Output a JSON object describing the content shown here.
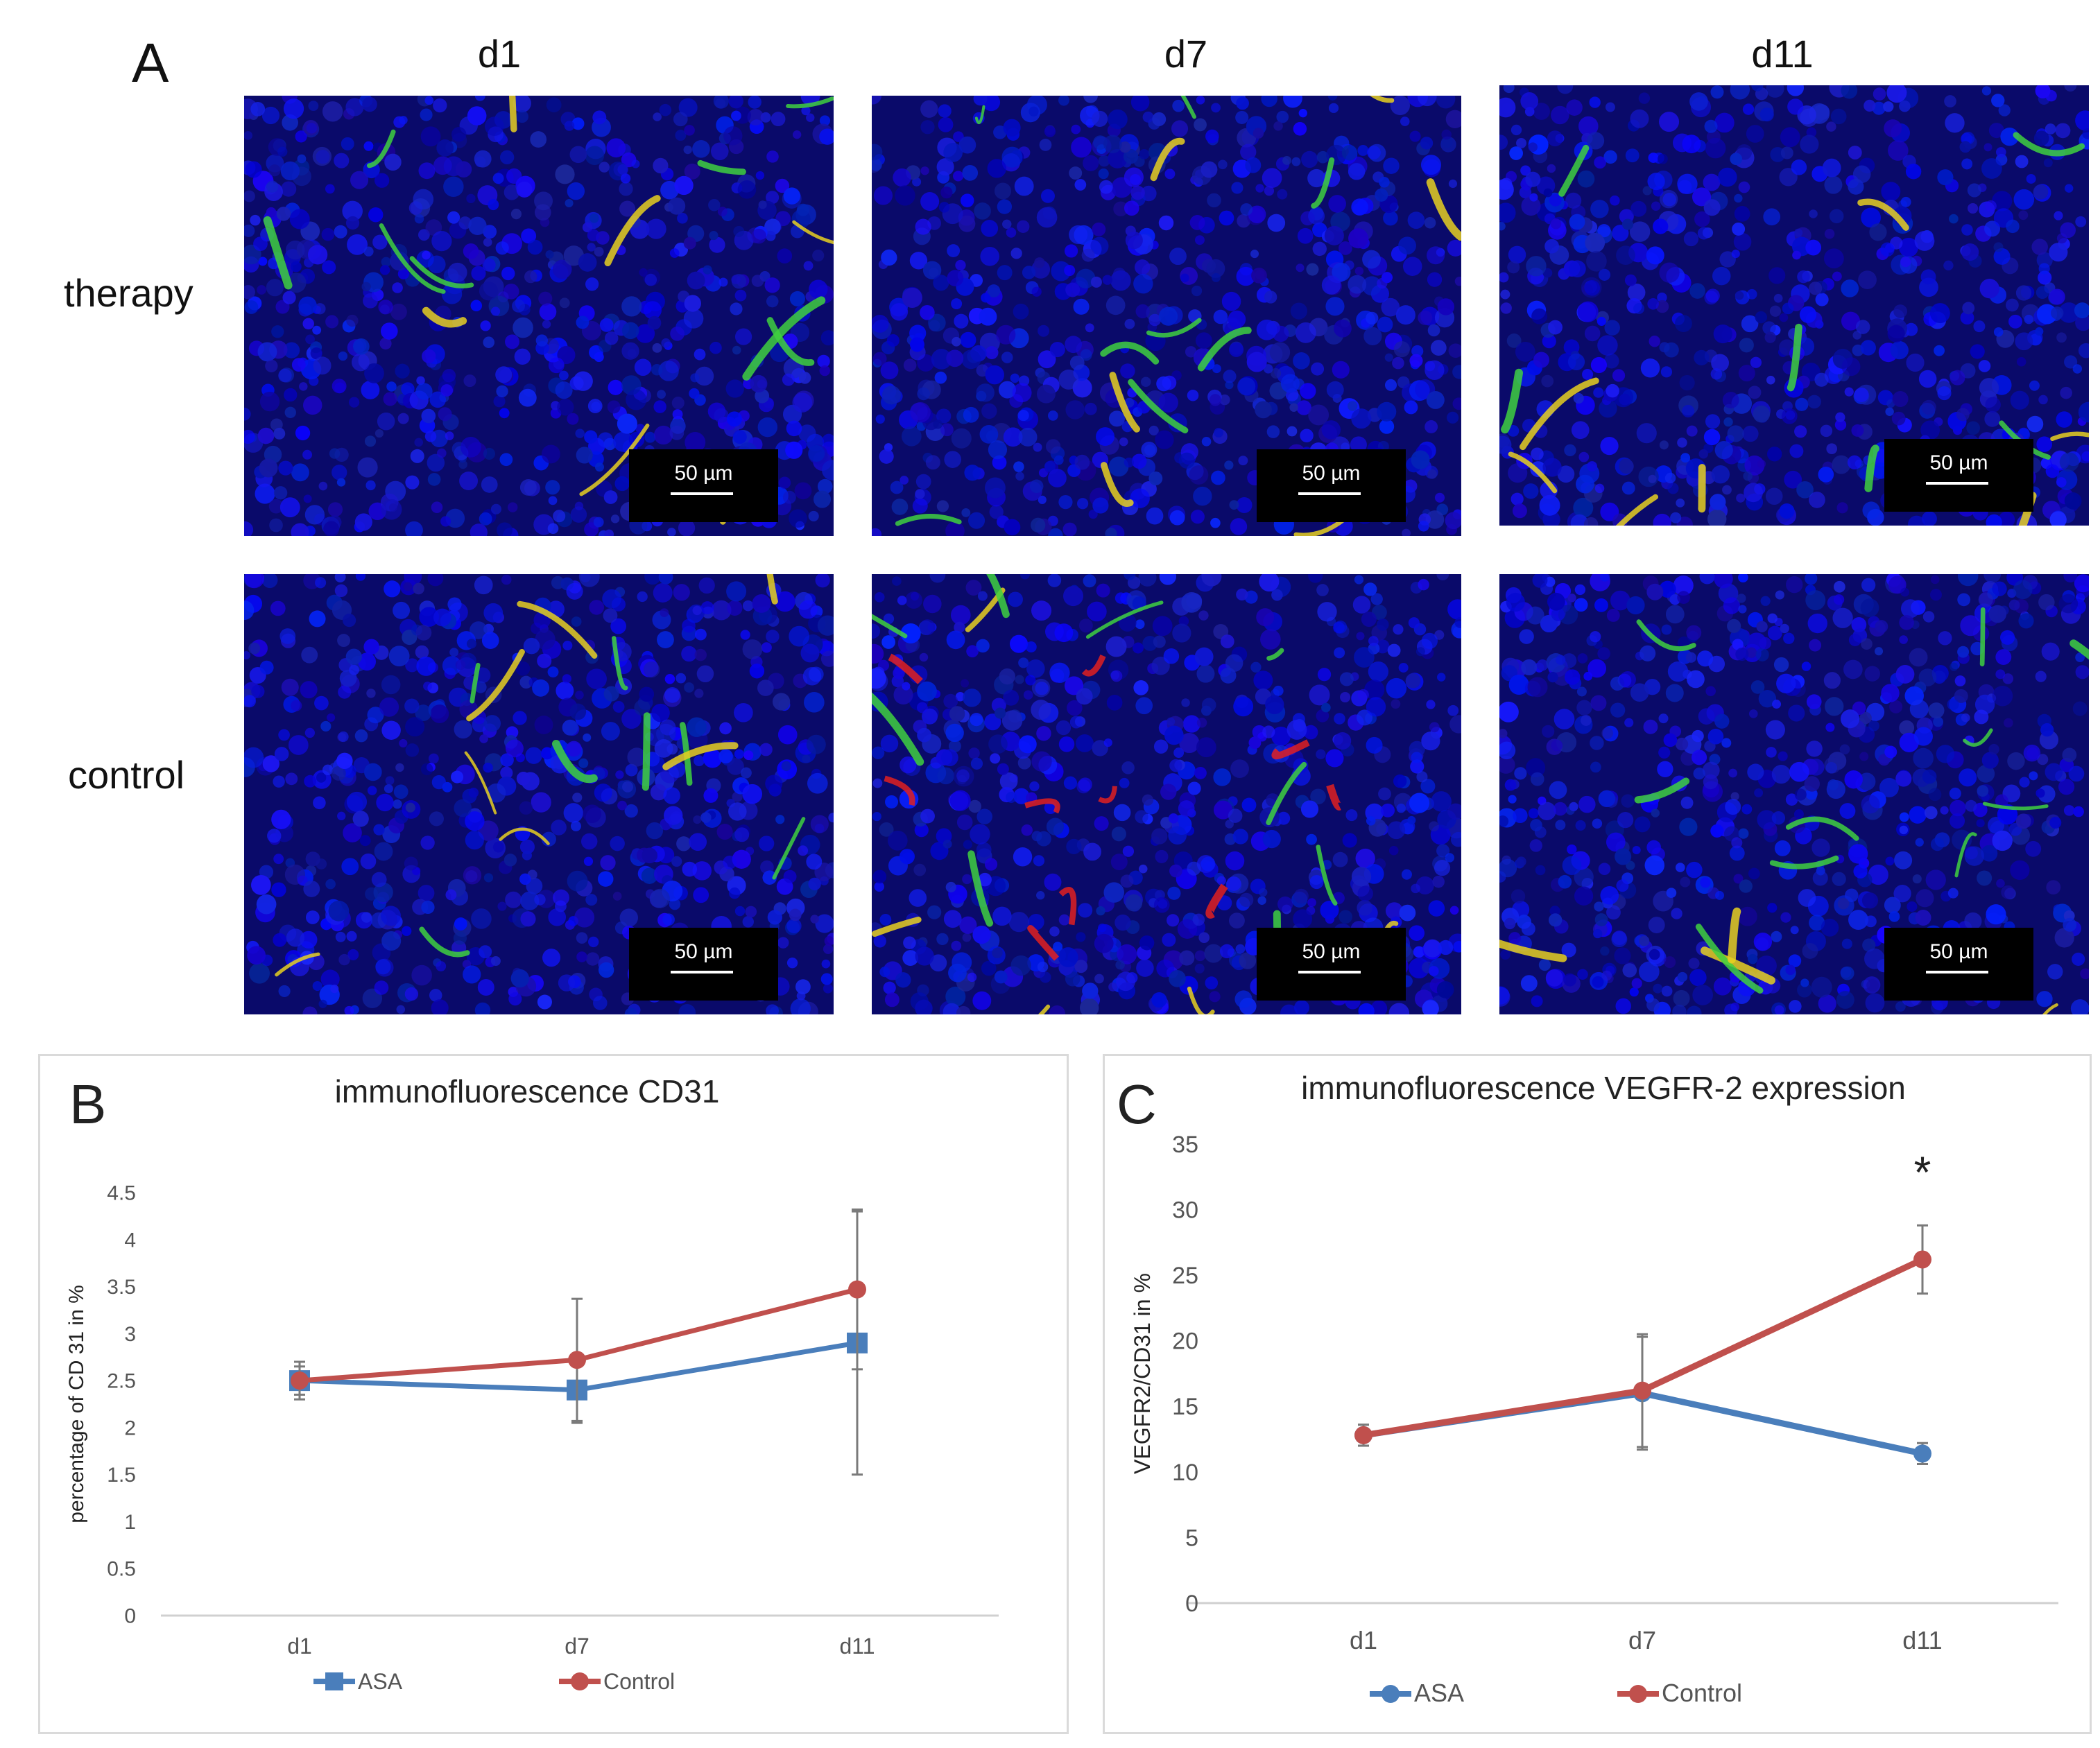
{
  "panel_a": {
    "letter": "A",
    "columns": [
      "d1",
      "d7",
      "d11"
    ],
    "rows": [
      "therapy",
      "control"
    ],
    "scale_bar": "50 µm"
  },
  "chart_data": [
    {
      "panel": "B",
      "type": "line",
      "title": "immunofluorescence CD31",
      "xlabel": "",
      "ylabel": "percentage of CD 31 in %",
      "categories": [
        "d1",
        "d7",
        "d11"
      ],
      "ylim": [
        0,
        4.5
      ],
      "yticks": [
        "0",
        "0.5",
        "1",
        "1.5",
        "2",
        "2.5",
        "3",
        "3.5",
        "4",
        "4.5"
      ],
      "grid": false,
      "legend_position": "bottom",
      "series": [
        {
          "name": "ASA",
          "color": "#4a7ebb",
          "marker": "square",
          "values": [
            2.5,
            2.4,
            2.9
          ],
          "errors": [
            0.2,
            0.35,
            1.4
          ]
        },
        {
          "name": "Control",
          "color": "#c0504d",
          "marker": "circle",
          "values": [
            2.5,
            2.72,
            3.47
          ],
          "errors": [
            0.15,
            0.65,
            0.85
          ]
        }
      ],
      "annotations": []
    },
    {
      "panel": "C",
      "type": "line",
      "title": "immunofluorescence VEGFR-2 expression",
      "xlabel": "",
      "ylabel": "VEGFR2/CD31 in %",
      "categories": [
        "d1",
        "d7",
        "d11"
      ],
      "ylim": [
        0,
        35
      ],
      "yticks": [
        "0",
        "5",
        "10",
        "15",
        "20",
        "25",
        "30",
        "35"
      ],
      "grid": false,
      "legend_position": "bottom",
      "series": [
        {
          "name": "ASA",
          "color": "#4a7ebb",
          "marker": "circle",
          "values": [
            12.8,
            16.0,
            11.4
          ],
          "errors": [
            0.8,
            4.3,
            0.8
          ]
        },
        {
          "name": "Control",
          "color": "#c0504d",
          "marker": "circle",
          "values": [
            12.8,
            16.2,
            26.2
          ],
          "errors": [
            0.8,
            4.3,
            2.6
          ]
        }
      ],
      "annotations": [
        "*"
      ]
    }
  ]
}
